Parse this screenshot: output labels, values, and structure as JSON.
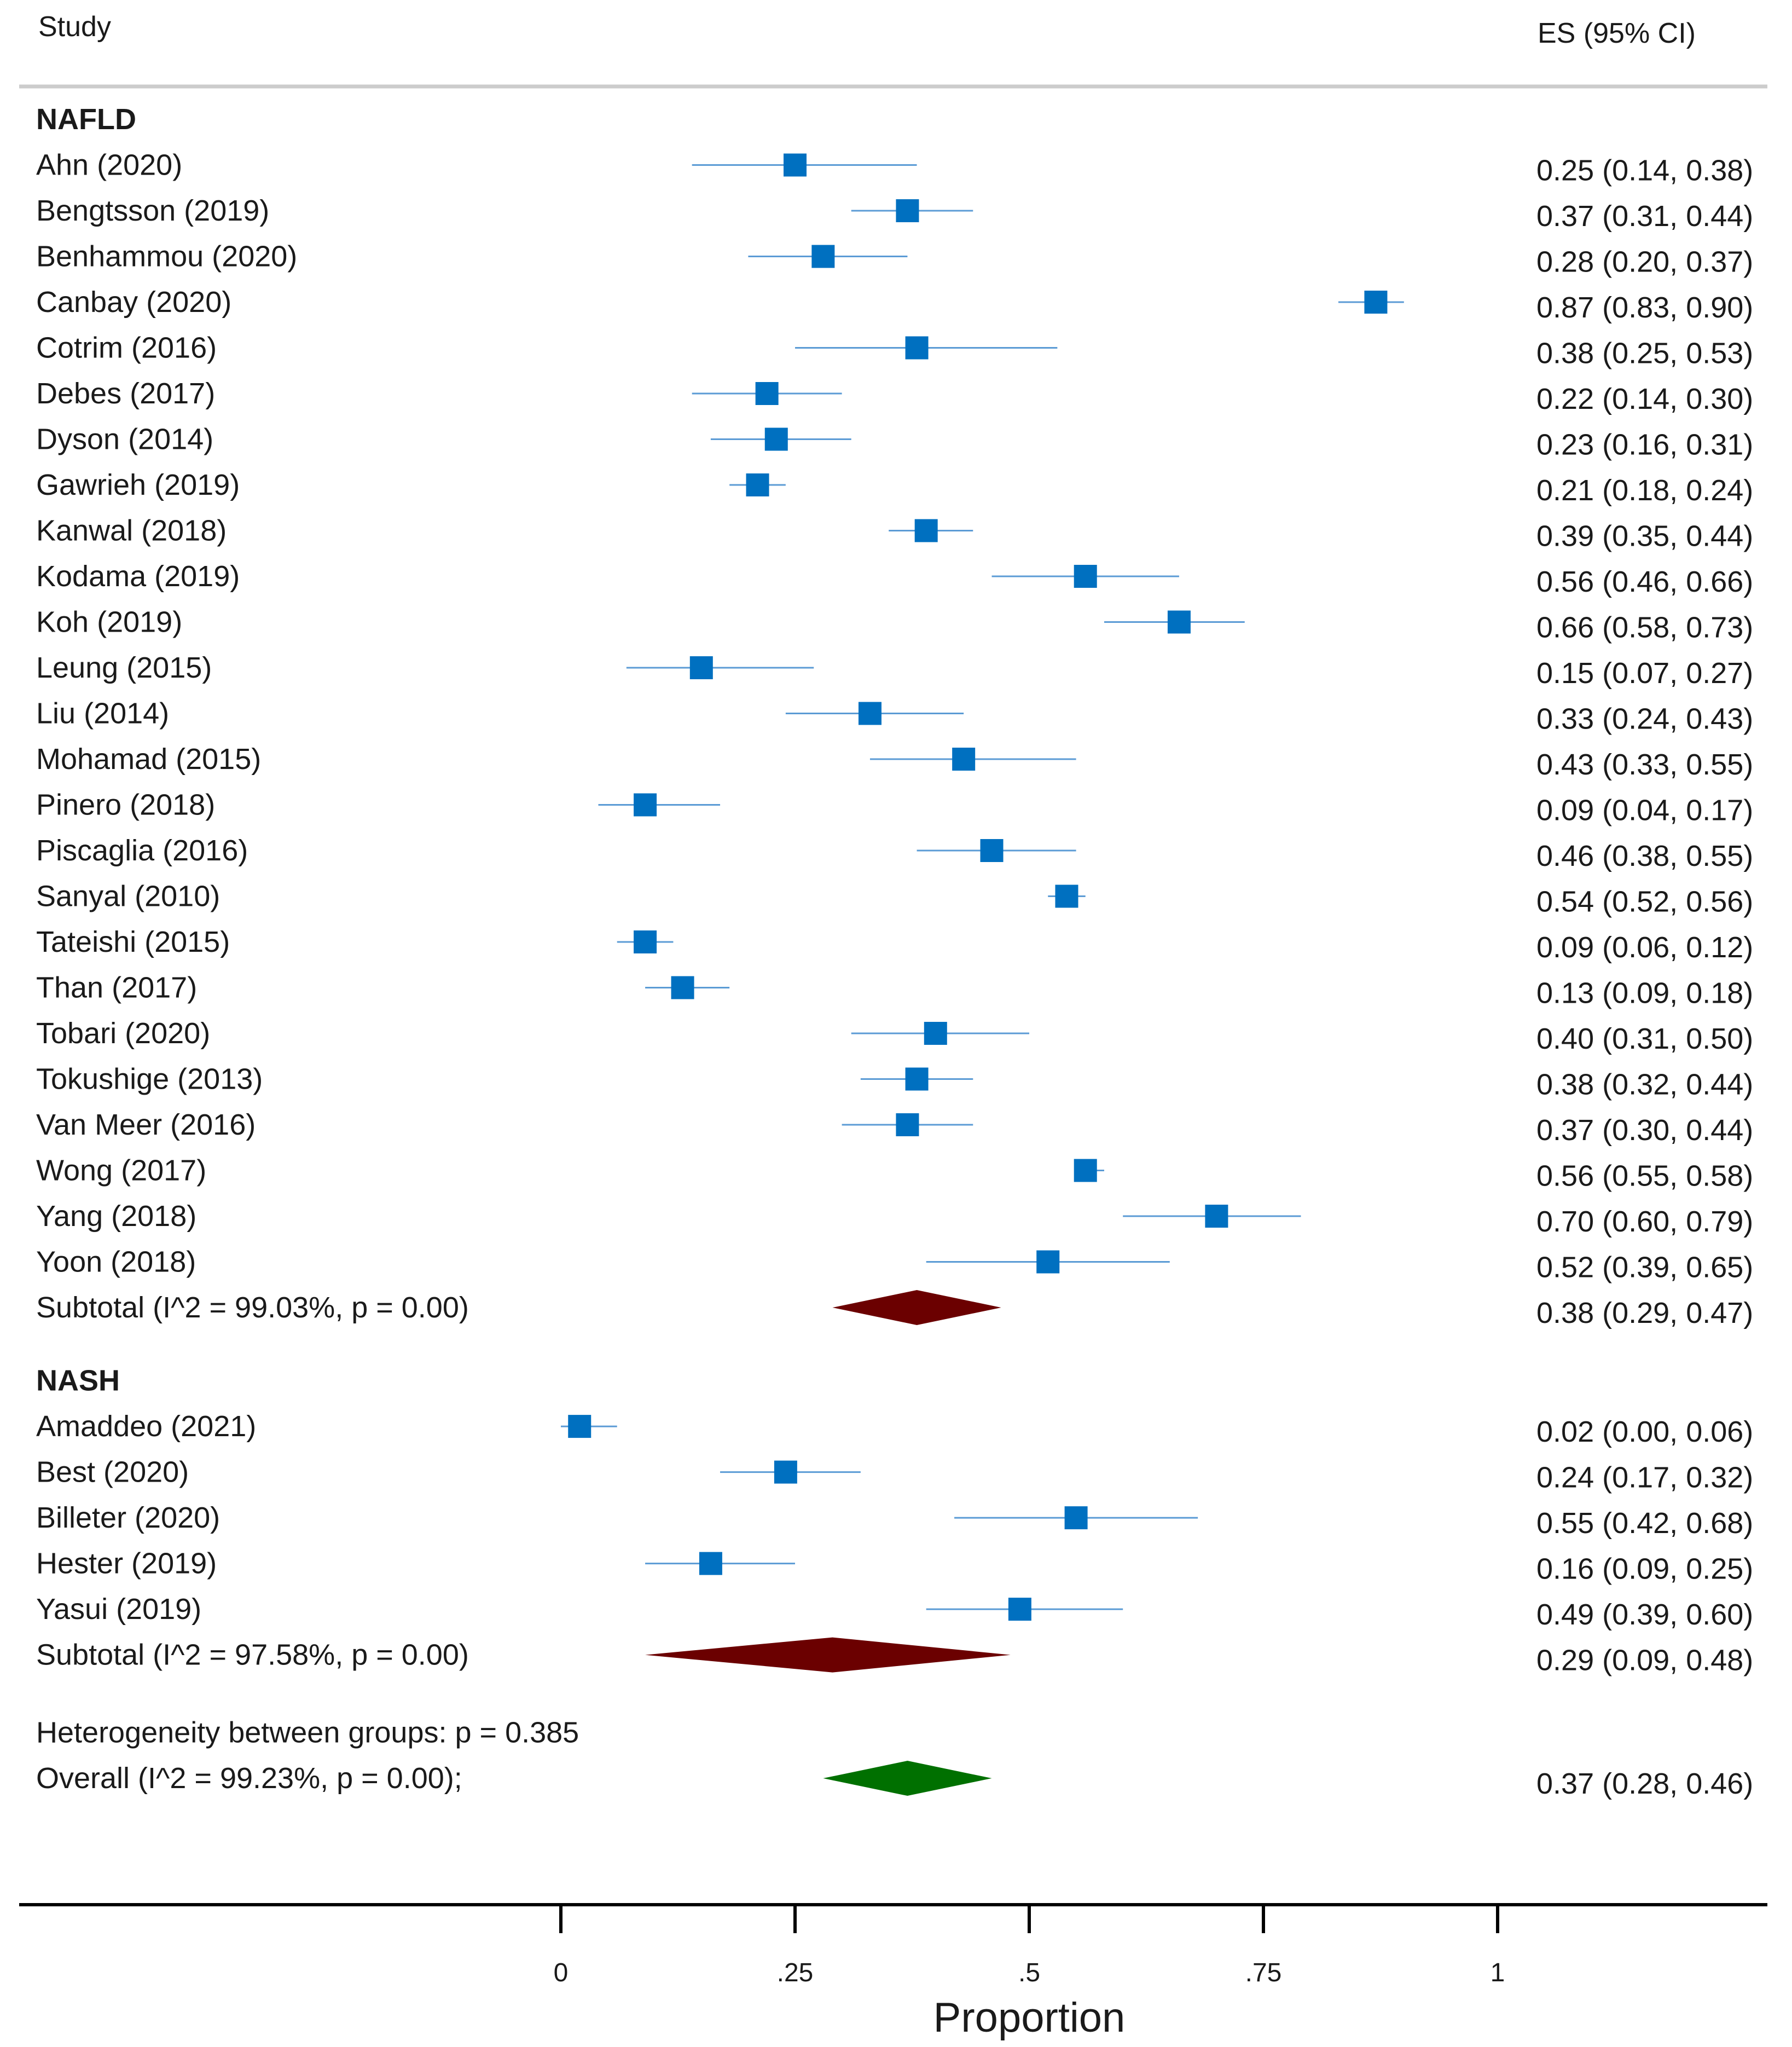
{
  "header": {
    "study_label": "Study",
    "es_label": "ES (95% CI)"
  },
  "chart_data": {
    "type": "forest",
    "xlabel": "Proportion",
    "xlim": [
      0,
      1
    ],
    "ticks": [
      {
        "value": 0,
        "label": "0"
      },
      {
        "value": 0.25,
        "label": ".25"
      },
      {
        "value": 0.5,
        "label": ".5"
      },
      {
        "value": 0.75,
        "label": ".75"
      },
      {
        "value": 1,
        "label": "1"
      }
    ],
    "colors": {
      "study": "#0070c0",
      "ci": "#5b9bd5",
      "subtotal": "#6b0000",
      "overall": "#007000",
      "text": "#1a1a1a",
      "axis": "#000000",
      "rule": "#cccccc"
    },
    "groups": [
      {
        "name": "NAFLD",
        "studies": [
          {
            "label": "Ahn (2020)",
            "es": 0.25,
            "lo": 0.14,
            "hi": 0.38,
            "ci_text": "0.25 (0.14, 0.38)"
          },
          {
            "label": "Bengtsson (2019)",
            "es": 0.37,
            "lo": 0.31,
            "hi": 0.44,
            "ci_text": "0.37 (0.31, 0.44)"
          },
          {
            "label": "Benhammou (2020)",
            "es": 0.28,
            "lo": 0.2,
            "hi": 0.37,
            "ci_text": "0.28 (0.20, 0.37)"
          },
          {
            "label": "Canbay (2020)",
            "es": 0.87,
            "lo": 0.83,
            "hi": 0.9,
            "ci_text": "0.87 (0.83, 0.90)"
          },
          {
            "label": "Cotrim (2016)",
            "es": 0.38,
            "lo": 0.25,
            "hi": 0.53,
            "ci_text": "0.38 (0.25, 0.53)"
          },
          {
            "label": "Debes (2017)",
            "es": 0.22,
            "lo": 0.14,
            "hi": 0.3,
            "ci_text": "0.22 (0.14, 0.30)"
          },
          {
            "label": "Dyson (2014)",
            "es": 0.23,
            "lo": 0.16,
            "hi": 0.31,
            "ci_text": "0.23 (0.16, 0.31)"
          },
          {
            "label": "Gawrieh (2019)",
            "es": 0.21,
            "lo": 0.18,
            "hi": 0.24,
            "ci_text": "0.21 (0.18, 0.24)"
          },
          {
            "label": "Kanwal (2018)",
            "es": 0.39,
            "lo": 0.35,
            "hi": 0.44,
            "ci_text": "0.39 (0.35, 0.44)"
          },
          {
            "label": "Kodama (2019)",
            "es": 0.56,
            "lo": 0.46,
            "hi": 0.66,
            "ci_text": "0.56 (0.46, 0.66)"
          },
          {
            "label": "Koh (2019)",
            "es": 0.66,
            "lo": 0.58,
            "hi": 0.73,
            "ci_text": "0.66 (0.58, 0.73)"
          },
          {
            "label": "Leung (2015)",
            "es": 0.15,
            "lo": 0.07,
            "hi": 0.27,
            "ci_text": "0.15 (0.07, 0.27)"
          },
          {
            "label": "Liu (2014)",
            "es": 0.33,
            "lo": 0.24,
            "hi": 0.43,
            "ci_text": "0.33 (0.24, 0.43)"
          },
          {
            "label": "Mohamad (2015)",
            "es": 0.43,
            "lo": 0.33,
            "hi": 0.55,
            "ci_text": "0.43 (0.33, 0.55)"
          },
          {
            "label": "Pinero (2018)",
            "es": 0.09,
            "lo": 0.04,
            "hi": 0.17,
            "ci_text": "0.09 (0.04, 0.17)"
          },
          {
            "label": "Piscaglia (2016)",
            "es": 0.46,
            "lo": 0.38,
            "hi": 0.55,
            "ci_text": "0.46 (0.38, 0.55)"
          },
          {
            "label": "Sanyal (2010)",
            "es": 0.54,
            "lo": 0.52,
            "hi": 0.56,
            "ci_text": "0.54 (0.52, 0.56)"
          },
          {
            "label": "Tateishi (2015)",
            "es": 0.09,
            "lo": 0.06,
            "hi": 0.12,
            "ci_text": "0.09 (0.06, 0.12)"
          },
          {
            "label": "Than (2017)",
            "es": 0.13,
            "lo": 0.09,
            "hi": 0.18,
            "ci_text": "0.13 (0.09, 0.18)"
          },
          {
            "label": "Tobari (2020)",
            "es": 0.4,
            "lo": 0.31,
            "hi": 0.5,
            "ci_text": "0.40 (0.31, 0.50)"
          },
          {
            "label": "Tokushige (2013)",
            "es": 0.38,
            "lo": 0.32,
            "hi": 0.44,
            "ci_text": "0.38 (0.32, 0.44)"
          },
          {
            "label": "Van Meer (2016)",
            "es": 0.37,
            "lo": 0.3,
            "hi": 0.44,
            "ci_text": "0.37 (0.30, 0.44)"
          },
          {
            "label": "Wong (2017)",
            "es": 0.56,
            "lo": 0.55,
            "hi": 0.58,
            "ci_text": "0.56 (0.55, 0.58)"
          },
          {
            "label": "Yang (2018)",
            "es": 0.7,
            "lo": 0.6,
            "hi": 0.79,
            "ci_text": "0.70 (0.60, 0.79)"
          },
          {
            "label": "Yoon (2018)",
            "es": 0.52,
            "lo": 0.39,
            "hi": 0.65,
            "ci_text": "0.52 (0.39, 0.65)"
          }
        ],
        "subtotal": {
          "label": "Subtotal  (I^2 = 99.03%, p = 0.00)",
          "es": 0.38,
          "lo": 0.29,
          "hi": 0.47,
          "ci_text": "0.38 (0.29, 0.47)"
        }
      },
      {
        "name": "NASH",
        "studies": [
          {
            "label": "Amaddeo (2021)",
            "es": 0.02,
            "lo": 0.0,
            "hi": 0.06,
            "ci_text": "0.02 (0.00, 0.06)"
          },
          {
            "label": "Best (2020)",
            "es": 0.24,
            "lo": 0.17,
            "hi": 0.32,
            "ci_text": "0.24 (0.17, 0.32)"
          },
          {
            "label": "Billeter (2020)",
            "es": 0.55,
            "lo": 0.42,
            "hi": 0.68,
            "ci_text": "0.55 (0.42, 0.68)"
          },
          {
            "label": "Hester (2019)",
            "es": 0.16,
            "lo": 0.09,
            "hi": 0.25,
            "ci_text": "0.16 (0.09, 0.25)"
          },
          {
            "label": "Yasui (2019)",
            "es": 0.49,
            "lo": 0.39,
            "hi": 0.6,
            "ci_text": "0.49 (0.39, 0.60)"
          }
        ],
        "subtotal": {
          "label": "Subtotal  (I^2 = 97.58%, p = 0.00)",
          "es": 0.29,
          "lo": 0.09,
          "hi": 0.48,
          "ci_text": "0.29 (0.09, 0.48)"
        }
      }
    ],
    "heterogeneity_text": "Heterogeneity between groups: p = 0.385",
    "overall": {
      "label": "Overall  (I^2 = 99.23%, p = 0.00);",
      "es": 0.37,
      "lo": 0.28,
      "hi": 0.46,
      "ci_text": "0.37 (0.28, 0.46)"
    }
  }
}
